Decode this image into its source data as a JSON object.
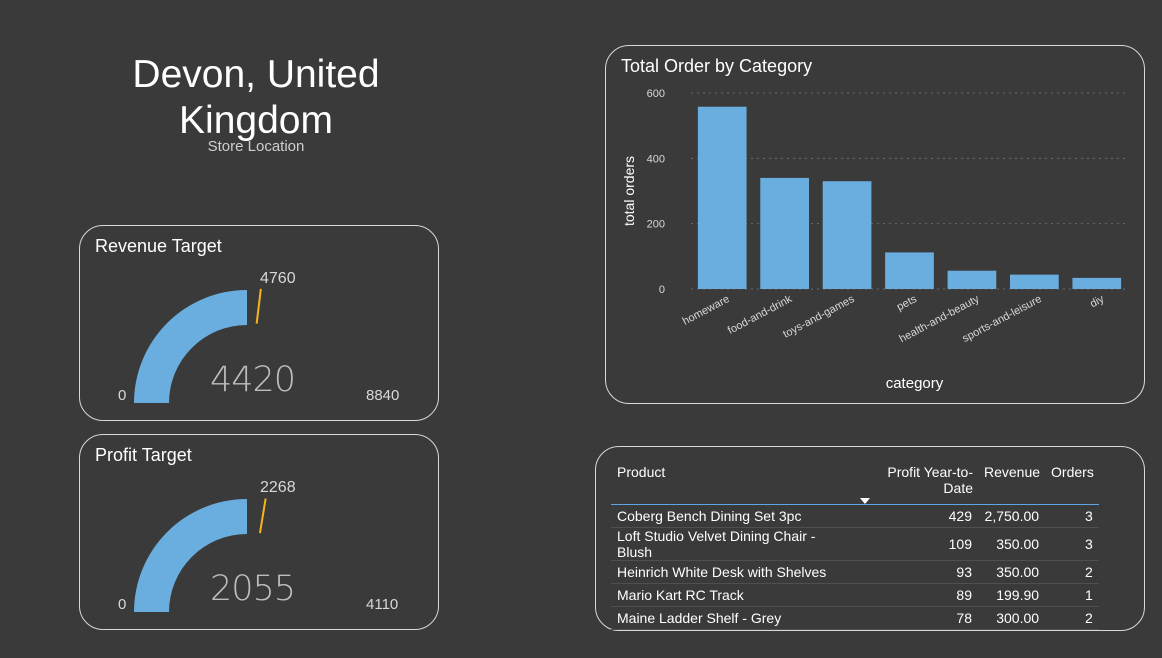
{
  "location": {
    "name": "Devon, United Kingdom",
    "label": "Store Location"
  },
  "revenue_gauge": {
    "title": "Revenue Target",
    "value": "4420",
    "target": "4760",
    "min": "0",
    "max": "8840",
    "value_num": 4420,
    "target_num": 4760,
    "min_num": 0,
    "max_num": 8840
  },
  "profit_gauge": {
    "title": "Profit Target",
    "value": "2055",
    "target": "2268",
    "min": "0",
    "max": "4110",
    "value_num": 2055,
    "target_num": 2268,
    "min_num": 0,
    "max_num": 4110
  },
  "colors": {
    "bar": "#6aaee0",
    "target": "#f5b41c",
    "background": "#3a3a3a",
    "grid": "#6a6a6a"
  },
  "chart_data": {
    "type": "bar",
    "title": "Total Order by Category",
    "xlabel": "category",
    "ylabel": "total orders",
    "categories": [
      "homeware",
      "food-and-drink",
      "toys-and-games",
      "pets",
      "health-and-beauty",
      "sports-and-leisure",
      "diy"
    ],
    "values": [
      558,
      340,
      330,
      112,
      56,
      44,
      34
    ],
    "ylim": [
      0,
      600
    ],
    "yticks": [
      0,
      200,
      400,
      600
    ],
    "grid": true
  },
  "table": {
    "columns": [
      "Product",
      "Profit Year-to-Date",
      "Revenue",
      "Orders"
    ],
    "rows": [
      [
        "Coberg Bench Dining Set 3pc",
        "429",
        "2,750.00",
        "3"
      ],
      [
        "Loft Studio Velvet Dining Chair - Blush",
        "109",
        "350.00",
        "3"
      ],
      [
        "Heinrich White Desk with Shelves",
        "93",
        "350.00",
        "2"
      ],
      [
        "Mario Kart RC Track",
        "89",
        "199.90",
        "1"
      ],
      [
        "Maine Ladder Shelf - Grey",
        "78",
        "300.00",
        "2"
      ]
    ]
  }
}
